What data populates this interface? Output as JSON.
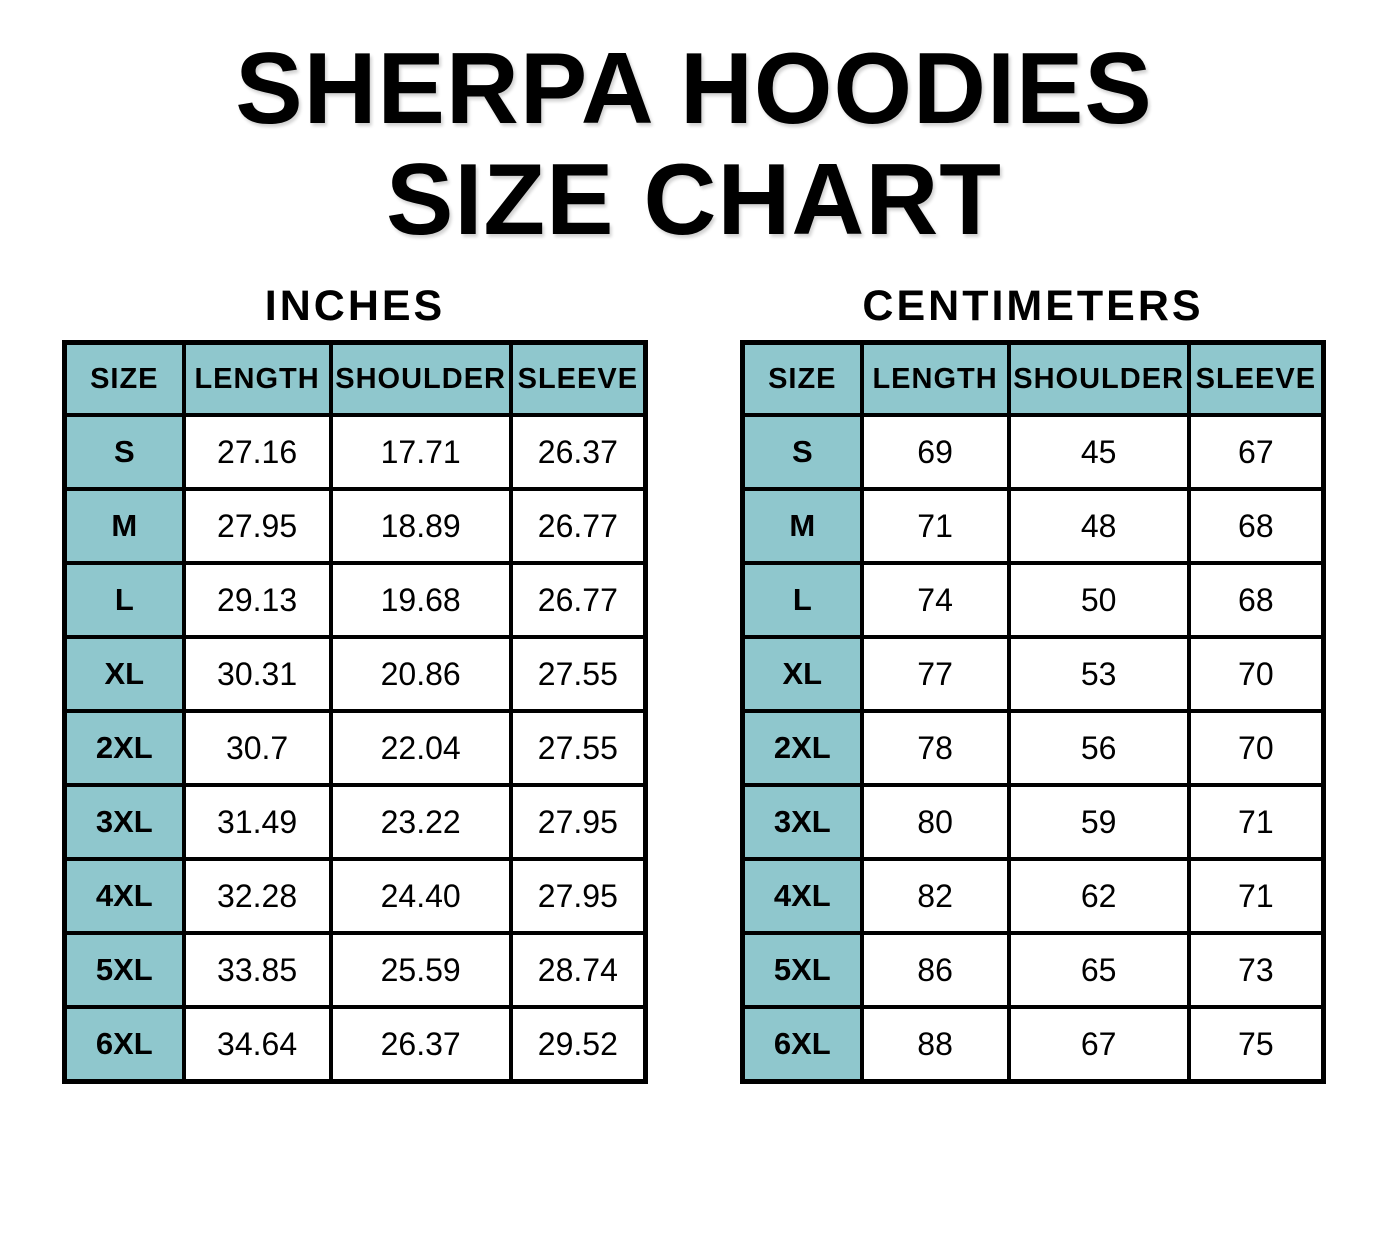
{
  "header": {
    "title_line1": "SHERPA HOODIES",
    "title_line2": "SIZE CHART"
  },
  "colors": {
    "accent": "#8fc7cd",
    "border": "#000000",
    "background": "#ffffff",
    "text": "#000000"
  },
  "chart_data": [
    {
      "type": "table",
      "title": "INCHES",
      "columns": [
        "SIZE",
        "LENGTH",
        "SHOULDER",
        "SLEEVE"
      ],
      "rows": [
        [
          "S",
          "27.16",
          "17.71",
          "26.37"
        ],
        [
          "M",
          "27.95",
          "18.89",
          "26.77"
        ],
        [
          "L",
          "29.13",
          "19.68",
          "26.77"
        ],
        [
          "XL",
          "30.31",
          "20.86",
          "27.55"
        ],
        [
          "2XL",
          "30.7",
          "22.04",
          "27.55"
        ],
        [
          "3XL",
          "31.49",
          "23.22",
          "27.95"
        ],
        [
          "4XL",
          "32.28",
          "24.40",
          "27.95"
        ],
        [
          "5XL",
          "33.85",
          "25.59",
          "28.74"
        ],
        [
          "6XL",
          "34.64",
          "26.37",
          "29.52"
        ]
      ]
    },
    {
      "type": "table",
      "title": "CENTIMETERS",
      "columns": [
        "SIZE",
        "LENGTH",
        "SHOULDER",
        "SLEEVE"
      ],
      "rows": [
        [
          "S",
          "69",
          "45",
          "67"
        ],
        [
          "M",
          "71",
          "48",
          "68"
        ],
        [
          "L",
          "74",
          "50",
          "68"
        ],
        [
          "XL",
          "77",
          "53",
          "70"
        ],
        [
          "2XL",
          "78",
          "56",
          "70"
        ],
        [
          "3XL",
          "80",
          "59",
          "71"
        ],
        [
          "4XL",
          "82",
          "62",
          "71"
        ],
        [
          "5XL",
          "86",
          "65",
          "73"
        ],
        [
          "6XL",
          "88",
          "67",
          "75"
        ]
      ]
    }
  ],
  "layout_hints": {
    "column_widths_percent": [
      20.5,
      25.3,
      31.0,
      23.2
    ]
  }
}
